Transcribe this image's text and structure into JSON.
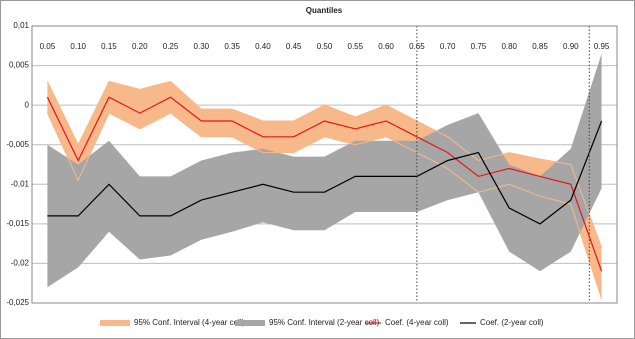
{
  "chart_data": {
    "type": "line_band",
    "title": "Quantiles",
    "categories": [
      "0.05",
      "0.10",
      "0.15",
      "0.20",
      "0.25",
      "0.30",
      "0.35",
      "0.40",
      "0.45",
      "0.50",
      "0.55",
      "0.60",
      "0.65",
      "0.70",
      "0.75",
      "0.80",
      "0.85",
      "0.90",
      "0.95"
    ],
    "bands": [
      {
        "name": "95% Conf. Interval (4-year coll)",
        "color": "#f8b98a",
        "upper": [
          0.003,
          -0.005,
          0.003,
          0.002,
          0.003,
          -0.0005,
          -0.0005,
          -0.002,
          -0.002,
          0.0,
          -0.0015,
          0.0,
          -0.002,
          -0.004,
          -0.007,
          -0.006,
          -0.0068,
          -0.0075,
          -0.018
        ],
        "lower": [
          -0.001,
          -0.0095,
          -0.001,
          -0.003,
          -0.001,
          -0.004,
          -0.004,
          -0.006,
          -0.006,
          -0.004,
          -0.005,
          -0.004,
          -0.006,
          -0.008,
          -0.011,
          -0.01,
          -0.0115,
          -0.0125,
          -0.0245
        ]
      },
      {
        "name": "95% Conf. Interval (2-year coll)",
        "color": "#a6a6a6",
        "upper": [
          -0.005,
          -0.0075,
          -0.0045,
          -0.009,
          -0.009,
          -0.007,
          -0.006,
          -0.0055,
          -0.0065,
          -0.0065,
          -0.0045,
          -0.0045,
          -0.0045,
          -0.0025,
          -0.001,
          -0.0075,
          -0.009,
          -0.0055,
          0.0065
        ],
        "lower": [
          -0.023,
          -0.0205,
          -0.016,
          -0.0195,
          -0.019,
          -0.017,
          -0.016,
          -0.0148,
          -0.0158,
          -0.0158,
          -0.0135,
          -0.0135,
          -0.0135,
          -0.012,
          -0.011,
          -0.0185,
          -0.021,
          -0.0185,
          -0.0105
        ]
      }
    ],
    "series": [
      {
        "name": "Coef. (4-year coll)",
        "color": "#e8141b",
        "values": [
          0.001,
          -0.007,
          0.001,
          -0.001,
          0.001,
          -0.002,
          -0.002,
          -0.004,
          -0.004,
          -0.002,
          -0.003,
          -0.002,
          -0.004,
          -0.006,
          -0.009,
          -0.008,
          -0.009,
          -0.01,
          -0.021
        ]
      },
      {
        "name": "Coef. (2-year coll)",
        "color": "#000000",
        "values": [
          -0.014,
          -0.014,
          -0.01,
          -0.014,
          -0.014,
          -0.012,
          -0.011,
          -0.01,
          -0.011,
          -0.011,
          -0.009,
          -0.009,
          -0.009,
          -0.007,
          -0.006,
          -0.013,
          -0.015,
          -0.012,
          -0.002
        ]
      }
    ],
    "vlines": [
      0.65,
      0.93
    ],
    "ylim": [
      -0.025,
      0.01
    ],
    "yticks": [
      {
        "value": -0.025,
        "label": "-0,025"
      },
      {
        "value": -0.02,
        "label": "-0,02"
      },
      {
        "value": -0.015,
        "label": "-0,015"
      },
      {
        "value": -0.01,
        "label": "-0,01"
      },
      {
        "value": -0.005,
        "label": "-0,005"
      },
      0,
      {
        "value": 0.005,
        "label": "0,005"
      },
      {
        "value": 0.01,
        "label": "0,01"
      }
    ],
    "grid": true,
    "legend": "bottom"
  }
}
